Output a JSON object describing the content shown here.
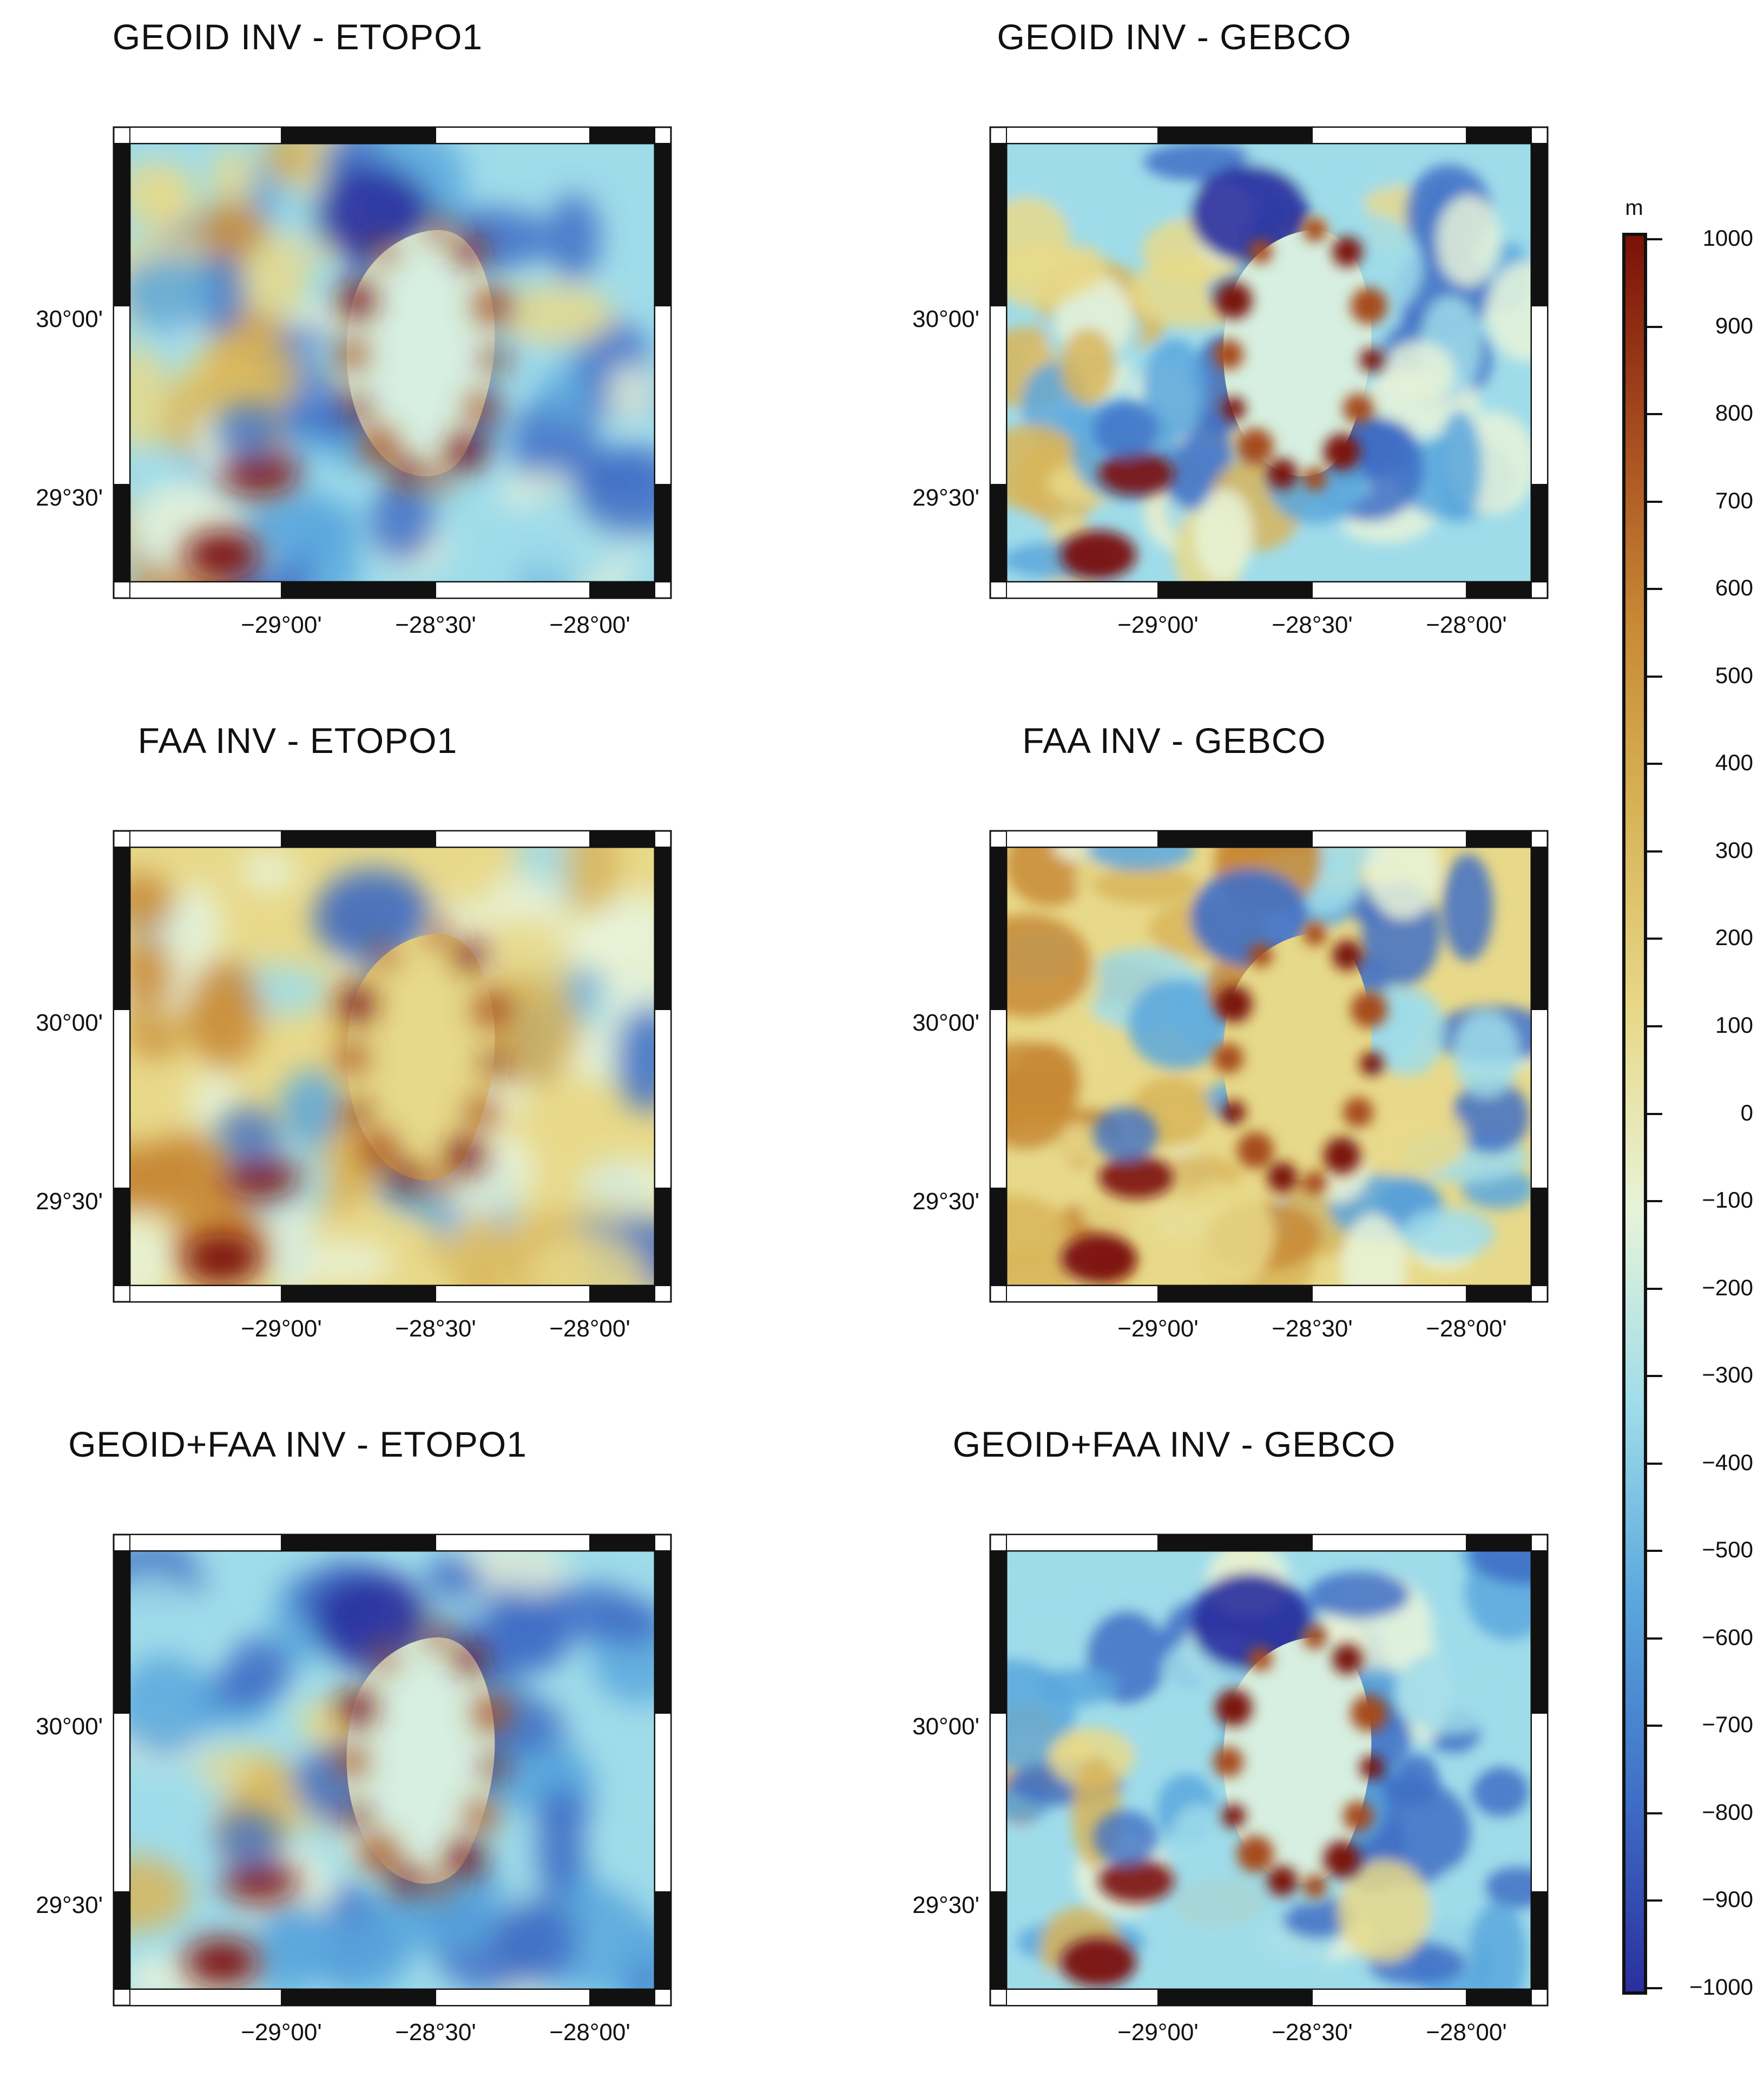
{
  "colors": {
    "ramp": [
      "#2a2f9e",
      "#3f6fc6",
      "#5aa7dd",
      "#9fdcea",
      "#e7f3d9",
      "#e8d98a",
      "#d8b55a",
      "#c88a35",
      "#a64b1f",
      "#7a1208"
    ],
    "frame": "#111111"
  },
  "panels": [
    {
      "title": "GEOID INV - ETOPO1",
      "style": "smooth",
      "blueBias": 0.15,
      "y_ticks": [
        "30°00'",
        "29°30'"
      ],
      "x_ticks": [
        "−29°00'",
        "−28°30'",
        "−28°00'"
      ]
    },
    {
      "title": "GEOID INV  - GEBCO",
      "style": "detailed",
      "blueBias": 0.12,
      "y_ticks": [
        "30°00'",
        "29°30'"
      ],
      "x_ticks": [
        "−29°00'",
        "−28°30'",
        "−28°00'"
      ]
    },
    {
      "title": "FAA INV - ETOPO1",
      "style": "smooth",
      "blueBias": -0.15,
      "y_ticks": [
        "30°00'",
        "29°30'"
      ],
      "x_ticks": [
        "−29°00'",
        "−28°30'",
        "−28°00'"
      ]
    },
    {
      "title": "FAA INV - GEBCO",
      "style": "detailed",
      "blueBias": -0.12,
      "y_ticks": [
        "30°00'",
        "29°30'"
      ],
      "x_ticks": [
        "−29°00'",
        "−28°30'",
        "−28°00'"
      ]
    },
    {
      "title": "GEOID+FAA INV - ETOPO1",
      "style": "smooth",
      "blueBias": 0.2,
      "y_ticks": [
        "30°00'",
        "29°30'"
      ],
      "x_ticks": [
        "−29°00'",
        "−28°30'",
        "−28°00'"
      ]
    },
    {
      "title": "GEOID+FAA INV - GEBCO",
      "style": "detailed",
      "blueBias": 0.2,
      "y_ticks": [
        "30°00'",
        "29°30'"
      ],
      "x_ticks": [
        "−29°00'",
        "−28°30'",
        "−28°00'"
      ]
    }
  ],
  "colorbar": {
    "unit": "m",
    "ticks": [
      "1000",
      "900",
      "800",
      "700",
      "600",
      "500",
      "400",
      "300",
      "200",
      "100",
      "0",
      "−100",
      "−200",
      "−300",
      "−400",
      "−500",
      "−600",
      "−700",
      "−800",
      "−900",
      "−1000"
    ]
  }
}
